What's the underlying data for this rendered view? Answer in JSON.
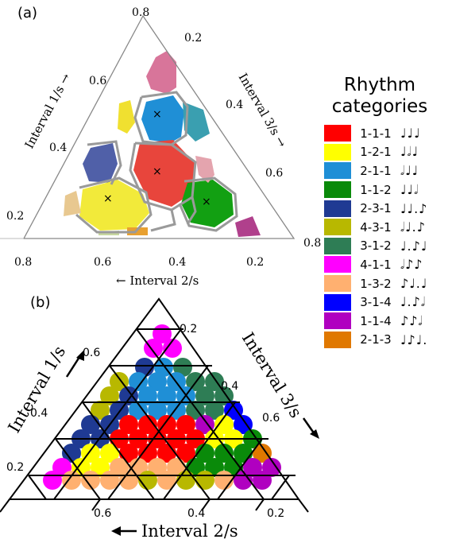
{
  "panel_a": {
    "label": "(a)",
    "ticks_left": [
      "0.2",
      "0.4",
      "0.6",
      "0.8"
    ],
    "ticks_right": [
      "0.2",
      "0.4",
      "0.6",
      "0.8"
    ],
    "ticks_bottom": [
      "0.8",
      "0.6",
      "0.4",
      "0.2"
    ],
    "axis_left": "Interval 1/s →",
    "axis_right": "Interval 3/s →",
    "axis_bottom": "← Interval 2/s",
    "center_marker": "×"
  },
  "panel_b": {
    "label": "(b)",
    "ticks_left": [
      "0.2",
      "0.4",
      "0.6"
    ],
    "ticks_right": [
      "0.2",
      "0.4",
      "0.6"
    ],
    "ticks_bottom": [
      "0.6",
      "0.4",
      "0.2"
    ],
    "axis_left": "Interval 1/s",
    "axis_right": "Interval 3/s",
    "axis_bottom": "Interval 2/s"
  },
  "legend": {
    "title": "Rhythm categories",
    "items": [
      {
        "label": "1-1-1",
        "color": "#ff0000",
        "notes": "♩♩♩"
      },
      {
        "label": "1-2-1",
        "color": "#ffff00",
        "notes": "♩𝅗𝅥♩"
      },
      {
        "label": "2-1-1",
        "color": "#1f8fd6",
        "notes": "𝅗𝅥♩♩"
      },
      {
        "label": "1-1-2",
        "color": "#0a8a0a",
        "notes": "♩♩𝅗𝅥"
      },
      {
        "label": "2-3-1",
        "color": "#1f3a93",
        "notes": "♩♩.♪"
      },
      {
        "label": "4-3-1",
        "color": "#b8b800",
        "notes": "𝅗𝅥♩.♪"
      },
      {
        "label": "3-1-2",
        "color": "#2e7d55",
        "notes": "♩.♪♩"
      },
      {
        "label": "4-1-1",
        "color": "#ff00ff",
        "notes": "𝅗𝅥♪♪"
      },
      {
        "label": "1-3-2",
        "color": "#ffb070",
        "notes": "♪♩.♩"
      },
      {
        "label": "3-1-4",
        "color": "#0000ff",
        "notes": "♩.♪𝅗𝅥"
      },
      {
        "label": "1-1-4",
        "color": "#b000c0",
        "notes": "♪♪𝅗𝅥"
      },
      {
        "label": "2-1-3",
        "color": "#e07800",
        "notes": "♩♪♩."
      }
    ]
  }
}
